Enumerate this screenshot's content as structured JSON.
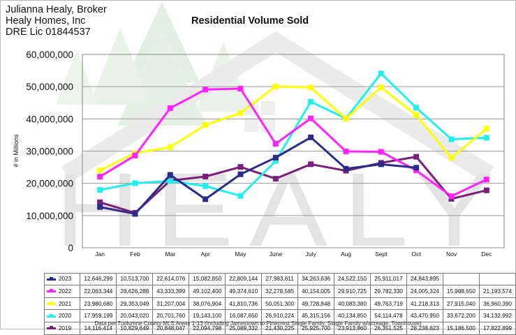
{
  "header": {
    "line1": "Julianna Healy, Broker",
    "line2": "Healy Homes, Inc",
    "line3": "DRE Lic 01844537"
  },
  "watermark": {
    "text": "HEALY"
  },
  "footnote": "Data per Tuolumne County MLS Areas 1-13 (Including Jamestown to Pinecrest Single Family, Single Family w/acreage, Townhouse)",
  "chart_data": {
    "type": "line",
    "title": "Residential Volume Sold",
    "ylabel": "# in Millions",
    "xlabel": "",
    "ylim": [
      0,
      60000000
    ],
    "yticks": [
      "0",
      "10,000,000",
      "20,000,000",
      "30,000,000",
      "40,000,000",
      "50,000,000",
      "60,000,000"
    ],
    "ytick_values": [
      0,
      10000000,
      20000000,
      30000000,
      40000000,
      50000000,
      60000000
    ],
    "grid": true,
    "legend": "table below chart",
    "categories": [
      "Jan",
      "Feb",
      "Mar",
      "Apr",
      "May",
      "June",
      "July",
      "Aug",
      "Sept",
      "Oct",
      "Nov",
      "Dec"
    ],
    "series": [
      {
        "name": "2023",
        "color": "#2b2b8c",
        "values": [
          12646299,
          10513700,
          22614076,
          15082850,
          22809144,
          27983611,
          34263636,
          24522150,
          25911017,
          24843895,
          null,
          null
        ],
        "labels": [
          "12,646,299",
          "10,513,700",
          "22,614,076",
          "15,082,850",
          "22,809,144",
          "27,983,611",
          "34,263,636",
          "24,522,150",
          "25,911,017",
          "24,843,895",
          "",
          ""
        ]
      },
      {
        "name": "2022",
        "color": "#ff22ff",
        "values": [
          22063344,
          28626288,
          43333399,
          49102400,
          49374610,
          32278585,
          40154005,
          29910725,
          29782330,
          24005324,
          15988650,
          21193574
        ],
        "labels": [
          "22,063,344",
          "28,626,288",
          "43,333,399",
          "49,102,400",
          "49,374,610",
          "32,278,585",
          "40,154,005",
          "29,910,725",
          "29,782,330",
          "24,005,324",
          "15,988,650",
          "21,193,574"
        ]
      },
      {
        "name": "2021",
        "color": "#ffff00",
        "values": [
          23980680,
          29353049,
          31207004,
          38076904,
          41810736,
          50051300,
          49728848,
          40083380,
          49763719,
          41218313,
          27915040,
          36960390
        ],
        "labels": [
          "23,980,680",
          "29,353,049",
          "31,207,004",
          "38,076,904",
          "41,810,736",
          "50,051,300",
          "49,728,848",
          "40,083,380",
          "49,763,719",
          "41,218,313",
          "27,915,040",
          "36,960,390"
        ]
      },
      {
        "name": "2020",
        "color": "#22eeee",
        "values": [
          17959199,
          20043020,
          20701760,
          19143100,
          16087650,
          26910224,
          45315156,
          40134850,
          54114478,
          43470950,
          33672200,
          34132992
        ],
        "labels": [
          "17,959,199",
          "20,043,020",
          "20,701,760",
          "19,143,100",
          "16,087,650",
          "26,910,224",
          "45,315,156",
          "40,134,850",
          "54,114,478",
          "43,470,950",
          "33,672,200",
          "34,132,992"
        ]
      },
      {
        "name": "2019",
        "color": "#7a1f7a",
        "values": [
          14116414,
          10829649,
          20848047,
          22094798,
          25089332,
          21430225,
          25925700,
          23913860,
          26351525,
          28238623,
          15186500,
          17822899
        ],
        "labels": [
          "14,116,414",
          "10,829,649",
          "20,848,047",
          "22,094,798",
          "25,089,332",
          "21,430,225",
          "25,925,700",
          "23,913,860",
          "26,351,525",
          "28,238,623",
          "15,186,500",
          "17,822,899"
        ]
      }
    ]
  }
}
